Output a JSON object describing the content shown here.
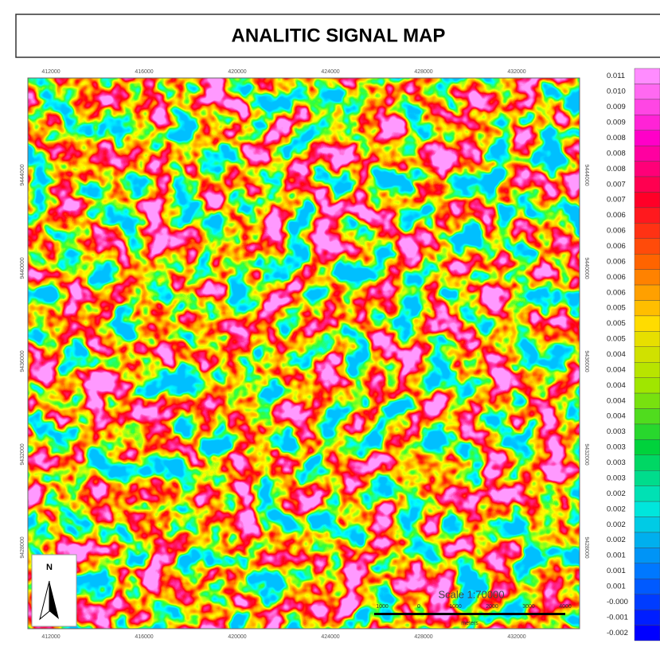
{
  "title": "ANALITIC SIGNAL MAP",
  "x_labels": [
    "412000",
    "416000",
    "420000",
    "424000",
    "428000",
    "432000"
  ],
  "y_labels": [
    "9444000",
    "9440000",
    "9436000",
    "9432000",
    "9428000"
  ],
  "legend_labels": [
    "0.011",
    "0.010",
    "0.009",
    "0.009",
    "0.008",
    "0.008",
    "0.008",
    "0.007",
    "0.007",
    "0.006",
    "0.006",
    "0.006",
    "0.006",
    "0.006",
    "0.006",
    "0.005",
    "0.005",
    "0.005",
    "0.004",
    "0.004",
    "0.004",
    "0.004",
    "0.004",
    "0.003",
    "0.003",
    "0.003",
    "0.003",
    "0.002",
    "0.002",
    "0.002",
    "0.002",
    "0.001",
    "0.001",
    "0.001",
    "-0.000",
    "-0.001",
    "-0.002"
  ],
  "north": "N",
  "scale": {
    "title": "Scale 1:70000",
    "ticks": [
      "1000",
      "0",
      "1000",
      "2000",
      "3000",
      "4000"
    ],
    "unit": "meters"
  }
}
